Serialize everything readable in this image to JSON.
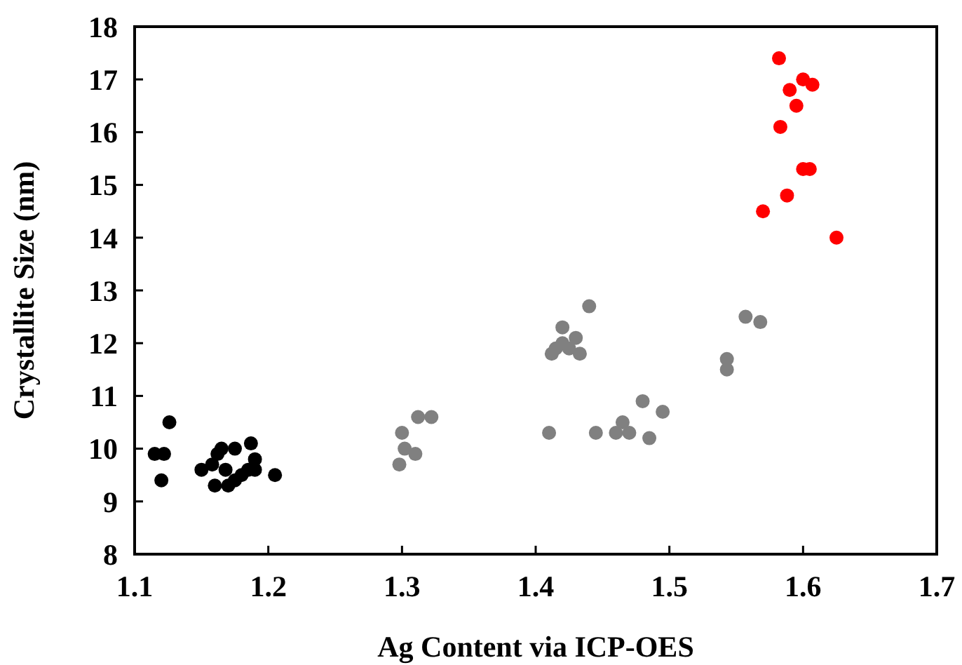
{
  "chart_data": {
    "type": "scatter",
    "xlabel": "Ag Content via ICP-OES",
    "ylabel": "Crystallite Size (nm)",
    "xlim": [
      1.1,
      1.7
    ],
    "xticks": [
      {
        "value": 1.1,
        "label": "1.1"
      },
      {
        "value": 1.2,
        "label": "1.2"
      },
      {
        "value": 1.3,
        "label": "1.3"
      },
      {
        "value": 1.4,
        "label": "1.4"
      },
      {
        "value": 1.5,
        "label": "1.5"
      },
      {
        "value": 1.6,
        "label": "1.6"
      },
      {
        "value": 1.7,
        "label": "1.7"
      }
    ],
    "ylim": [
      8,
      18
    ],
    "yticks": [
      8,
      9,
      10,
      11,
      12,
      13,
      14,
      15,
      16,
      17,
      18
    ],
    "grid": false,
    "marker": "circle",
    "series": [
      {
        "color": "#000000",
        "x": [
          1.115,
          1.122,
          1.12,
          1.126,
          1.15,
          1.158,
          1.162,
          1.165,
          1.175,
          1.16,
          1.168,
          1.17,
          1.175,
          1.18,
          1.185,
          1.187,
          1.19,
          1.19,
          1.205
        ],
        "values": [
          9.9,
          9.9,
          9.4,
          10.5,
          9.6,
          9.7,
          9.9,
          10.0,
          10.0,
          9.3,
          9.6,
          9.3,
          9.4,
          9.5,
          9.6,
          10.1,
          9.8,
          9.6,
          9.5
        ]
      },
      {
        "color": "#808080",
        "x": [
          1.298,
          1.3,
          1.302,
          1.31,
          1.312,
          1.322,
          1.412,
          1.415,
          1.42,
          1.42,
          1.425,
          1.43,
          1.433,
          1.44,
          1.41,
          1.445,
          1.46,
          1.465,
          1.47,
          1.48,
          1.485,
          1.495,
          1.543,
          1.543,
          1.557,
          1.568
        ],
        "values": [
          9.7,
          10.3,
          10.0,
          9.9,
          10.6,
          10.6,
          11.8,
          11.9,
          12.0,
          12.3,
          11.9,
          12.1,
          11.8,
          12.7,
          10.3,
          10.3,
          10.3,
          10.5,
          10.3,
          10.9,
          10.2,
          10.7,
          11.7,
          11.5,
          12.5,
          12.4
        ]
      },
      {
        "color": "#ff0000",
        "x": [
          1.582,
          1.59,
          1.6,
          1.595,
          1.583,
          1.607,
          1.6,
          1.605,
          1.588,
          1.57,
          1.625
        ],
        "values": [
          17.4,
          16.8,
          17.0,
          16.5,
          16.1,
          16.9,
          15.3,
          15.3,
          14.8,
          14.5,
          14.0
        ]
      }
    ]
  }
}
